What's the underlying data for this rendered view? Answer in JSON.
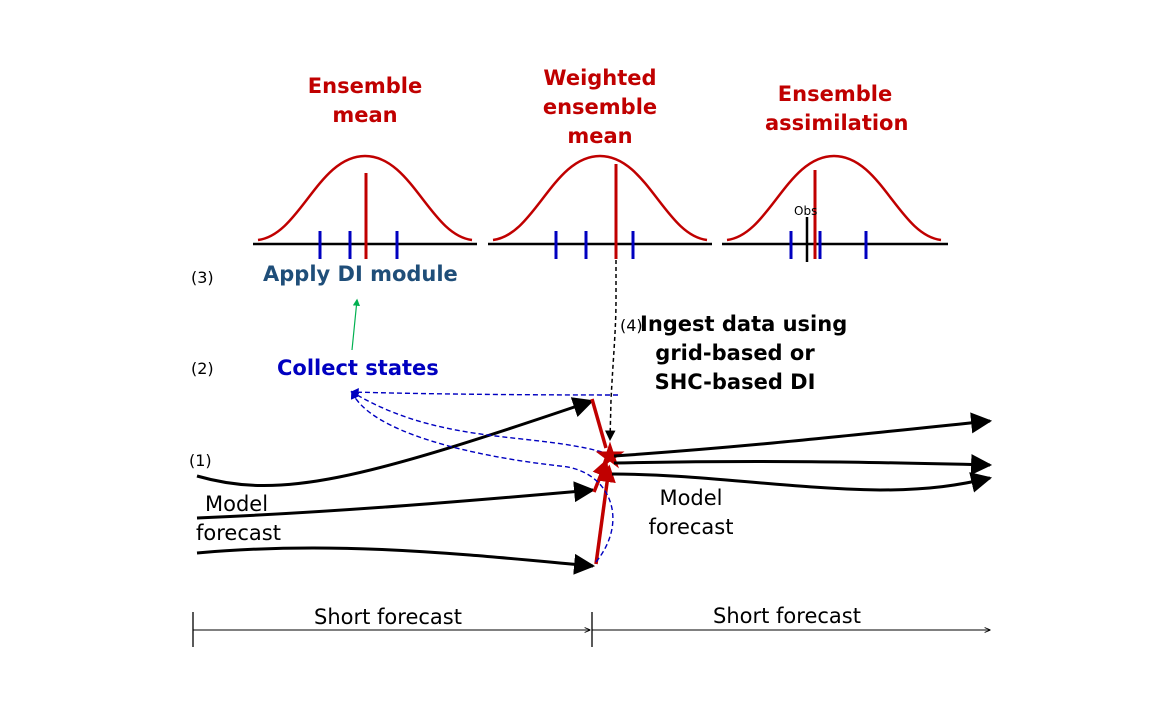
{
  "titles": {
    "ensemble_mean": [
      "Ensemble",
      "mean"
    ],
    "weighted_ensemble_mean": [
      "Weighted",
      "ensemble",
      "mean"
    ],
    "ensemble_assimilation": [
      "Ensemble",
      "assimilation"
    ]
  },
  "obs_label": "Obs",
  "steps": {
    "s1": "(1)",
    "s2": "(2)",
    "s3": "(3)",
    "s4": "(4)"
  },
  "apply_di_module": "Apply DI module",
  "collect_states": "Collect states",
  "ingest": [
    "Ingest data using",
    "grid-based or",
    "SHC-based DI"
  ],
  "model_forecast_left": [
    "Model",
    "forecast"
  ],
  "model_forecast_right": [
    "Model",
    "forecast"
  ],
  "short_forecast_left": "Short forecast",
  "short_forecast_right": "Short forecast",
  "colors": {
    "red": "#c00000",
    "dark_blue": "#0000c0",
    "di_blue": "#1f4e79",
    "green": "#00b050",
    "black": "#000000"
  }
}
